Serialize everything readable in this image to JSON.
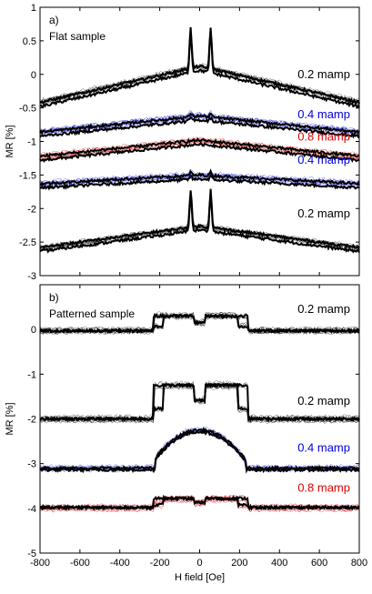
{
  "chart_data": [
    {
      "type": "line",
      "panel_label": "a)",
      "sample_label": "Flat sample",
      "xlabel": "",
      "ylabel": "MR [%]",
      "xlim": [
        -800,
        800
      ],
      "ylim": [
        -3,
        1
      ],
      "y_ticks": [
        "1",
        "0.5",
        "0",
        "-0.5",
        "-1",
        "-1.5",
        "-2",
        "-2.5",
        "-3"
      ],
      "y_tick_values": [
        1,
        0.5,
        0,
        -0.5,
        -1,
        -1.5,
        -2,
        -2.5,
        -3
      ],
      "x_tick_values": [
        -800,
        -600,
        -400,
        -200,
        0,
        200,
        400,
        600,
        800
      ],
      "x_ticks": [],
      "grid": false,
      "curves": [
        {
          "label": "0.2 mamp",
          "color": "#000000",
          "label_color": "#000000",
          "baseline": -0.42,
          "center": 0.12,
          "peak": 0.72,
          "kind": "peaks",
          "label_y": 0.0
        },
        {
          "label": "0.4 mamp",
          "color": "#0000cc",
          "label_color": "#0000dd",
          "baseline": -0.86,
          "center": -0.62,
          "peak": -0.57,
          "kind": "peaks",
          "label_y": -0.6
        },
        {
          "label": "0.8 mamp",
          "color": "#cc0000",
          "label_color": "#dd0000",
          "baseline": -1.22,
          "center": -0.98,
          "peak": -0.98,
          "kind": "peaks",
          "label_y": -0.93
        },
        {
          "label": "0.4 mamp",
          "color": "#0000cc",
          "label_color": "#0000dd",
          "baseline": -1.63,
          "center": -1.5,
          "peak": -1.45,
          "kind": "peaks",
          "label_y": -1.28
        },
        {
          "label": "0.2 mamp",
          "color": "#000000",
          "label_color": "#000000",
          "baseline": -2.58,
          "center": -2.26,
          "peak": -1.7,
          "kind": "peaks",
          "label_y": -2.08
        }
      ]
    },
    {
      "type": "line",
      "panel_label": "b)",
      "sample_label": "Patterned sample",
      "xlabel": "H field [Oe]",
      "ylabel": "MR [%]",
      "xlim": [
        -800,
        800
      ],
      "ylim": [
        -5,
        1
      ],
      "y_ticks": [
        "0",
        "-1",
        "-2",
        "-3",
        "-4",
        "-5"
      ],
      "y_tick_values": [
        0,
        -1,
        -2,
        -3,
        -4,
        -5
      ],
      "x_ticks": [
        "-800",
        "-600",
        "-400",
        "-200",
        "0",
        "200",
        "400",
        "600",
        "800"
      ],
      "x_tick_values": [
        -800,
        -600,
        -400,
        -200,
        0,
        200,
        400,
        600,
        800
      ],
      "grid": false,
      "curves": [
        {
          "label": "0.2 mamp",
          "color": "#000000",
          "label_color": "#000000",
          "baseline": -0.03,
          "top": 0.3,
          "kind": "plateau",
          "label_y": 0.45
        },
        {
          "label": "0.2 mamp",
          "color": "#000000",
          "label_color": "#000000",
          "baseline": -2.0,
          "top": -1.25,
          "kind": "plateau",
          "label_y": -1.6
        },
        {
          "label": "0.4 mamp",
          "color": "#0000cc",
          "label_color": "#0000dd",
          "baseline": -3.1,
          "top": -2.25,
          "kind": "dome",
          "label_y": -2.65
        },
        {
          "label": "0.8 mamp",
          "color": "#cc0000",
          "label_color": "#dd0000",
          "baseline": -3.98,
          "top": -3.78,
          "kind": "plateau",
          "label_y": -3.55
        }
      ]
    }
  ]
}
